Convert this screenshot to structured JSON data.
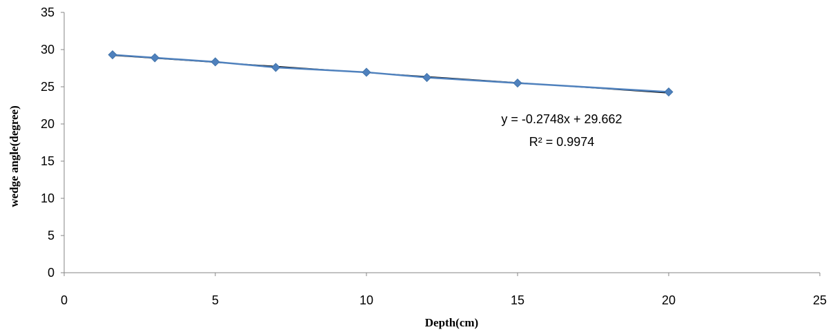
{
  "chart_data": {
    "type": "scatter",
    "title": "",
    "xlabel": "Depth(cm)",
    "ylabel": "wedge angle(degree)",
    "xlim": [
      0,
      25
    ],
    "ylim": [
      0,
      35
    ],
    "x_ticks": [
      "0",
      "5",
      "10",
      "15",
      "20",
      "25"
    ],
    "y_ticks": [
      "0",
      "5",
      "10",
      "15",
      "20",
      "25",
      "30",
      "35"
    ],
    "grid": false,
    "legend": "none",
    "series": [
      {
        "x": [
          1.6,
          3,
          5,
          7,
          10,
          12,
          15,
          20
        ],
        "y": [
          29.3,
          28.9,
          28.35,
          27.6,
          26.95,
          26.25,
          25.5,
          24.3
        ],
        "marker": "diamond",
        "color": "#4F81BD"
      }
    ],
    "trendline": {
      "slope": -0.2748,
      "intercept": 29.662,
      "x_range": [
        1.6,
        20
      ],
      "color": "#000000",
      "equation_label": "y = -0.2748x + 29.662",
      "r2_label": "R² = 0.9974"
    }
  }
}
